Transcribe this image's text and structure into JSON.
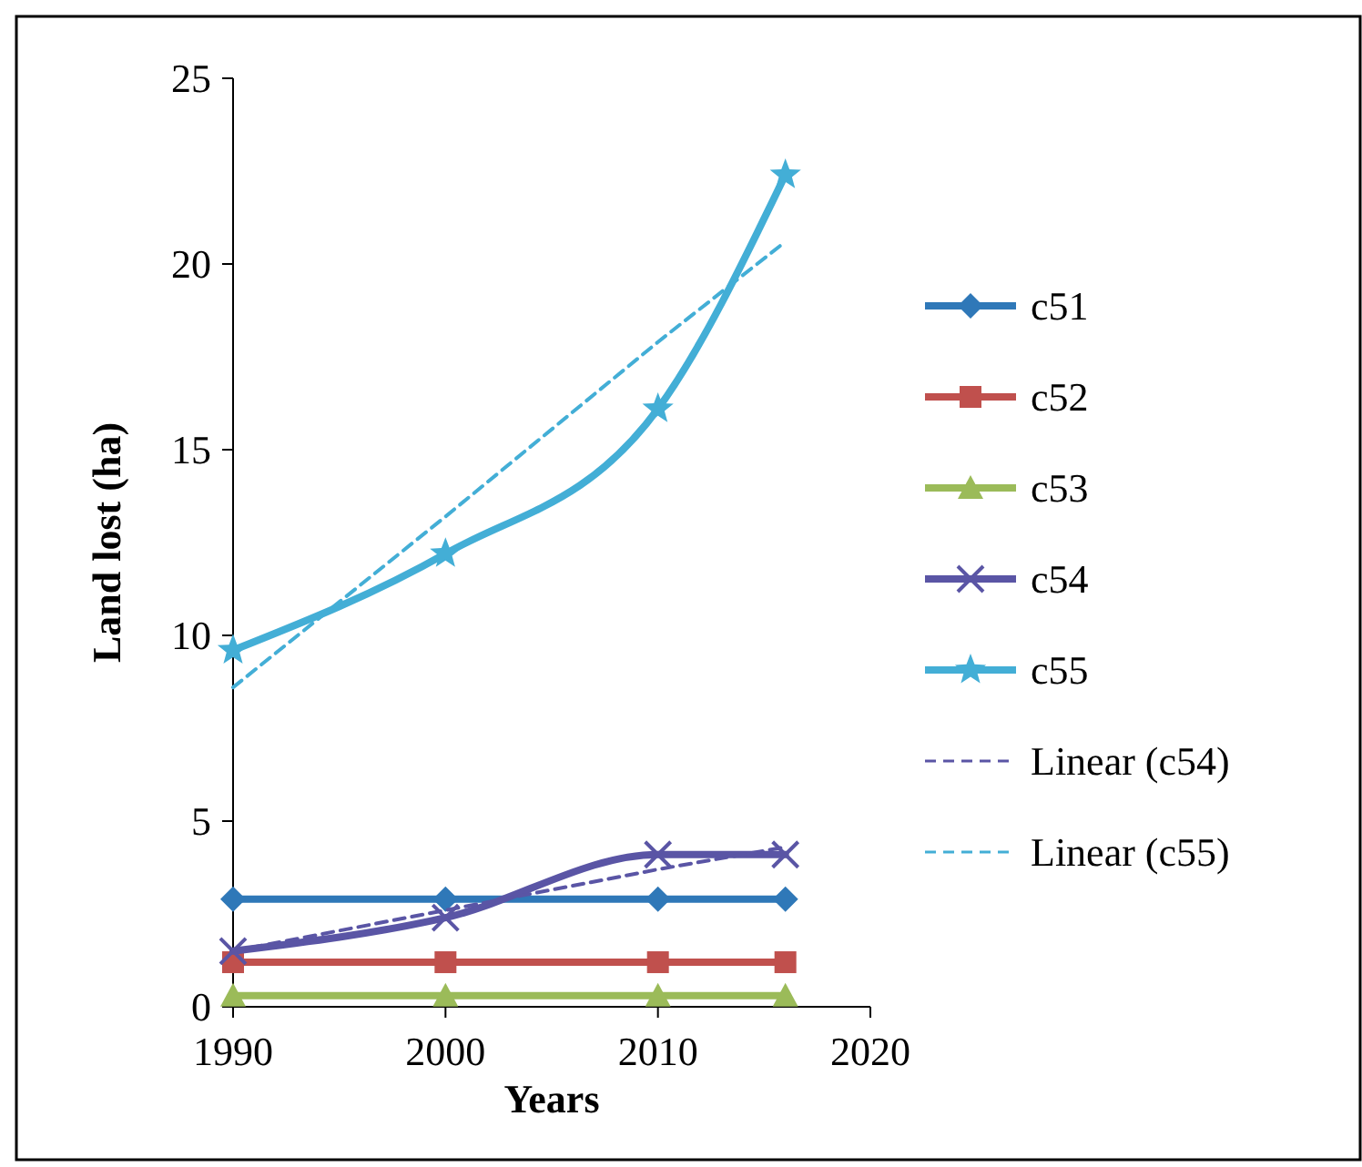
{
  "chart_data": {
    "type": "line",
    "xlabel": "Years",
    "ylabel": "Land lost (ha)",
    "xlim": [
      1990,
      2020
    ],
    "xticks": [
      1990,
      2000,
      2010,
      2020
    ],
    "ylim": [
      0,
      25
    ],
    "yticks": [
      0,
      5,
      10,
      15,
      20,
      25
    ],
    "grid": false,
    "legend": "right",
    "x": [
      1990,
      2000,
      2010,
      2016
    ],
    "series": [
      {
        "name": "c51",
        "color": "#2f78b8",
        "marker": "diamond",
        "values": [
          2.9,
          2.9,
          2.9,
          2.9
        ]
      },
      {
        "name": "c52",
        "color": "#c0504d",
        "marker": "square",
        "values": [
          1.2,
          1.2,
          1.2,
          1.2
        ]
      },
      {
        "name": "c53",
        "color": "#9bbb59",
        "marker": "triangle",
        "values": [
          0.3,
          0.3,
          0.3,
          0.3
        ]
      },
      {
        "name": "c54",
        "color": "#5a55a5",
        "marker": "cross",
        "values": [
          1.5,
          2.4,
          4.1,
          4.1
        ]
      },
      {
        "name": "c55",
        "color": "#43aed6",
        "marker": "star",
        "values": [
          9.6,
          12.2,
          16.1,
          22.4
        ]
      },
      {
        "name": "Linear (c54)",
        "color": "#5a55a5",
        "marker": "none",
        "line_style": "dashed",
        "values": [
          1.5,
          2.6,
          3.7,
          4.3
        ]
      },
      {
        "name": "Linear (c55)",
        "color": "#43aed6",
        "marker": "none",
        "line_style": "dashed",
        "values": [
          8.6,
          13.2,
          17.9,
          20.6
        ]
      }
    ]
  }
}
